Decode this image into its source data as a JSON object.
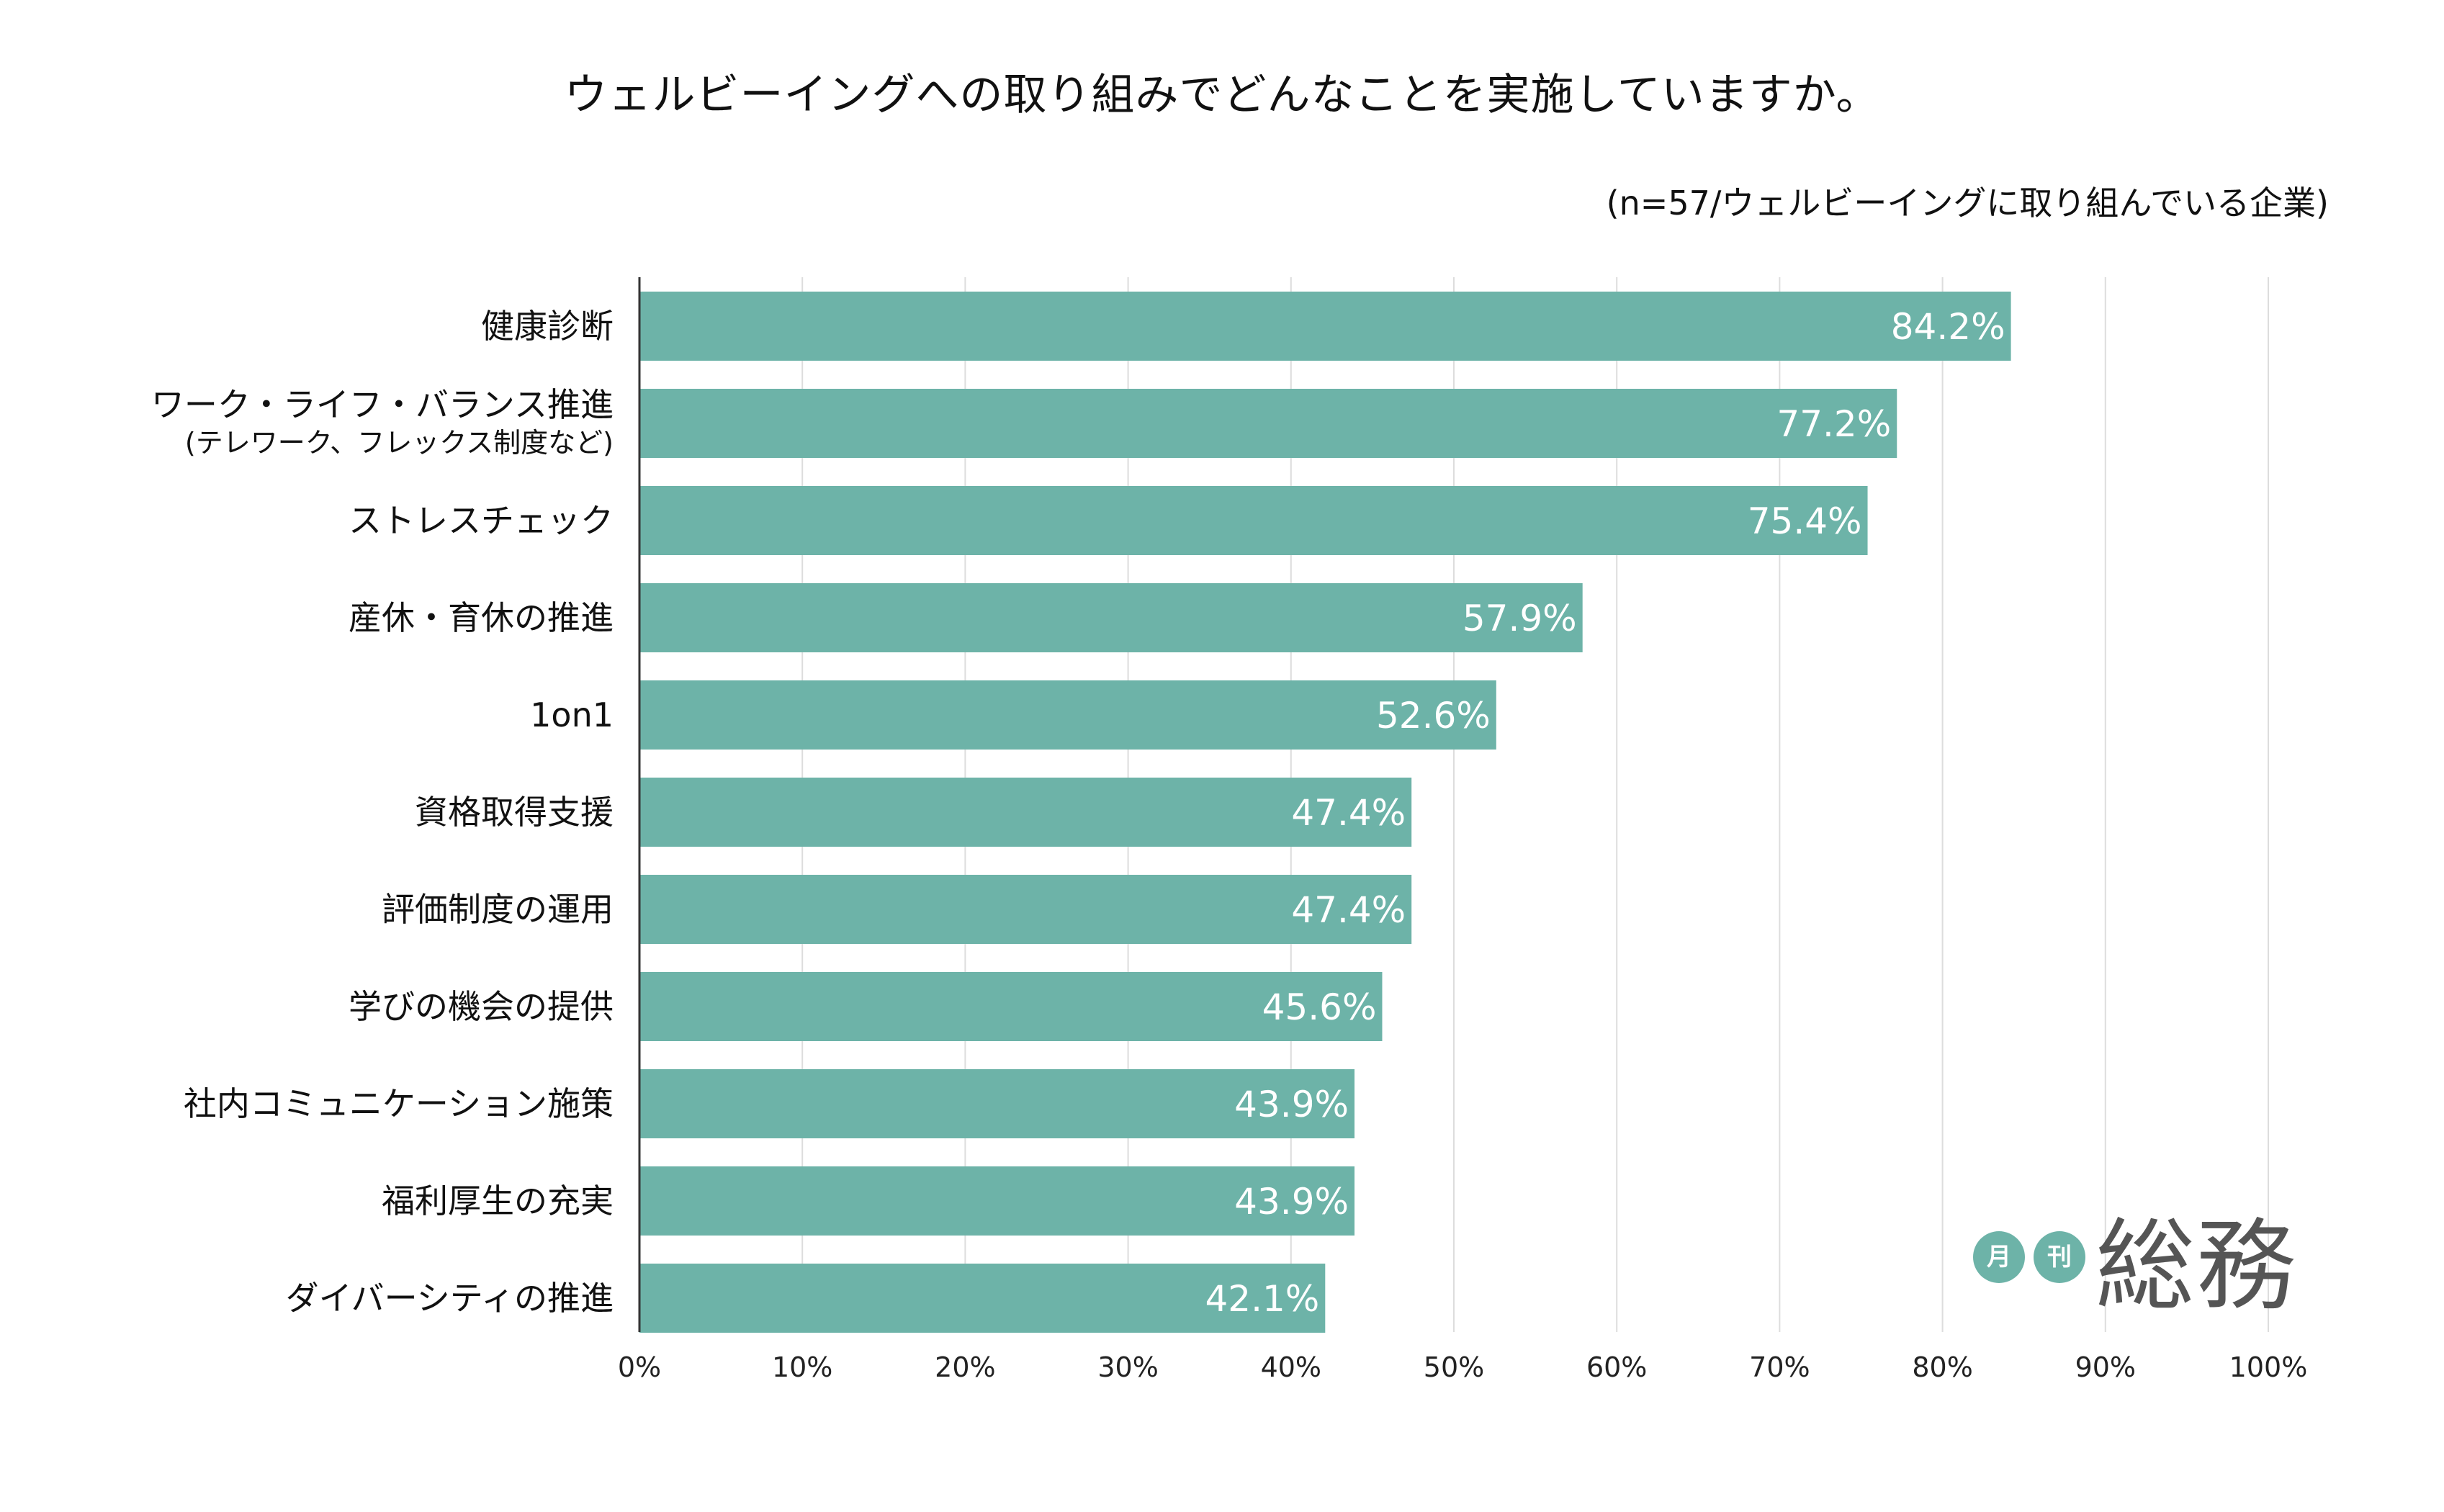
{
  "title": "ウェルビーイングへの取り組みでどんなことを実施していますか。",
  "subtitle": "(n=57/ウェルビーイングに取り組んでいる企業)",
  "colors": {
    "bar": "#6db3a8",
    "grid": "#dddddd",
    "axis": "#333333",
    "value_text": "#ffffff"
  },
  "logo": {
    "small_1": "月",
    "small_2": "刊",
    "main": "総務"
  },
  "chart_data": {
    "type": "bar",
    "orientation": "horizontal",
    "categories": [
      "健康診断",
      "ワーク・ライフ・バランス推進",
      "ストレスチェック",
      "産休・育休の推進",
      "1on1",
      "資格取得支援",
      "評価制度の運用",
      "学びの機会の提供",
      "社内コミュニケーション施策",
      "福利厚生の充実",
      "ダイバーシティの推進"
    ],
    "category_sublabels": [
      "",
      "(テレワーク、フレックス制度など)",
      "",
      "",
      "",
      "",
      "",
      "",
      "",
      "",
      ""
    ],
    "values": [
      84.2,
      77.2,
      75.4,
      57.9,
      52.6,
      47.4,
      47.4,
      45.6,
      43.9,
      43.9,
      42.1
    ],
    "value_labels": [
      "84.2%",
      "77.2%",
      "75.4%",
      "57.9%",
      "52.6%",
      "47.4%",
      "47.4%",
      "45.6%",
      "43.9%",
      "43.9%",
      "42.1%"
    ],
    "xlim": [
      0,
      100
    ],
    "x_ticks": [
      "0%",
      "10%",
      "20%",
      "30%",
      "40%",
      "50%",
      "60%",
      "70%",
      "80%",
      "90%",
      "100%"
    ],
    "grid": true
  }
}
